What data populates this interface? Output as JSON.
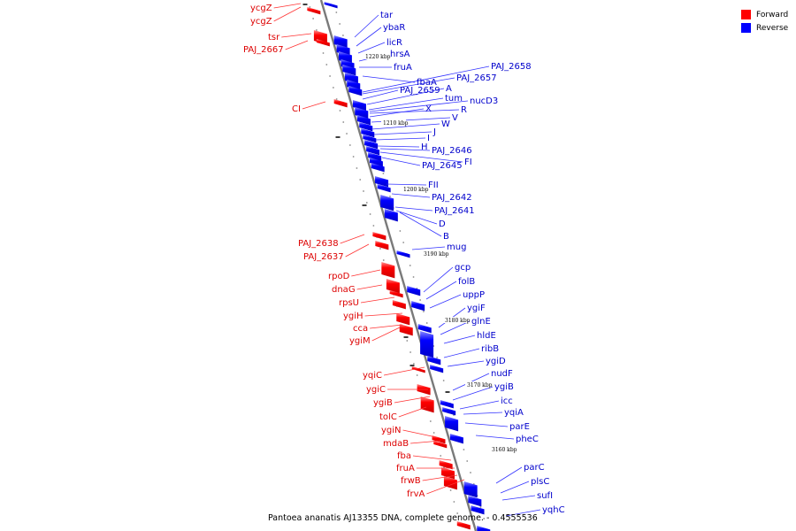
{
  "legend": [
    {
      "label": "Forward",
      "color": "#ff0000"
    },
    {
      "label": "Reverse",
      "color": "#0000ff"
    }
  ],
  "caption": "Pantoea ananatis AJ13355 DNA, complete genome. - 0.4555536",
  "scale_ticks": [
    "1220 kbp",
    "1210 kbp",
    "1200 kbp",
    "3190 kbp",
    "3180 kbp",
    "3170 kbp",
    "3160 kbp"
  ],
  "forward_genes": [
    "ycgZ",
    "ycgZ",
    "tsr",
    "PAJ_2667",
    "CI",
    "PAJ_2638",
    "PAJ_2637",
    "rpoD",
    "dnaG",
    "rpsU",
    "ygiH",
    "cca",
    "ygiM",
    "yqiC",
    "ygiC",
    "ygiB",
    "tolC",
    "ygiN",
    "mdaB",
    "fba",
    "fruA",
    "frwB",
    "frvA"
  ],
  "reverse_genes": [
    "tar",
    "ybaR",
    "licR",
    "hrsA",
    "fruA",
    "fbaA",
    "PAJ_2658",
    "PAJ_2657",
    "PAJ_2659",
    "A",
    "tum",
    "nucD3",
    "R",
    "X",
    "V",
    "W",
    "J",
    "I",
    "H",
    "PAJ_2646",
    "FI",
    "PAJ_2645",
    "FII",
    "PAJ_2642",
    "PAJ_2641",
    "D",
    "B",
    "mug",
    "gcp",
    "folB",
    "uppP",
    "ygiF",
    "glnE",
    "hldE",
    "ribB",
    "ygiD",
    "nudF",
    "ygiB",
    "icc",
    "yqiA",
    "parE",
    "pheC",
    "parC",
    "plsC",
    "sufI",
    "yqhC"
  ],
  "colors": {
    "forward": "#ff0000",
    "reverse": "#0000ff",
    "backbone": "#777777",
    "dots": "#888888"
  }
}
